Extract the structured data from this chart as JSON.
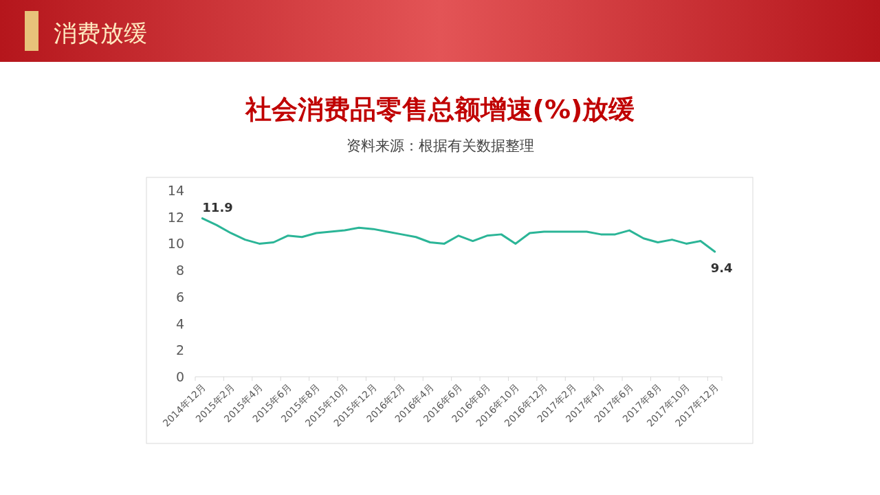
{
  "chart_data": {
    "type": "line",
    "title": "社会消费品零售总额增速(%)放缓",
    "subtitle": "资料来源：根据有关数据整理",
    "annotations": [
      "消费放缓"
    ],
    "categories": [
      "2014年12月",
      null,
      "2015年2月",
      null,
      "2015年4月",
      null,
      "2015年6月",
      null,
      "2015年8月",
      null,
      "2015年10月",
      null,
      "2015年12月",
      null,
      "2016年2月",
      null,
      "2016年4月",
      null,
      "2016年6月",
      null,
      "2016年8月",
      null,
      "2016年10月",
      null,
      "2016年12月",
      null,
      "2017年2月",
      null,
      "2017年4月",
      null,
      "2017年6月",
      null,
      "2017年8月",
      null,
      "2017年10月",
      null,
      "2017年12月"
    ],
    "series": [
      {
        "color": "#2bb597",
        "values": [
          11.9,
          11.4,
          10.8,
          10.3,
          10.0,
          10.1,
          10.6,
          10.5,
          10.8,
          10.9,
          11.0,
          11.2,
          11.1,
          10.9,
          10.7,
          10.5,
          10.1,
          10.0,
          10.6,
          10.2,
          10.6,
          10.7,
          10.0,
          10.8,
          10.9,
          10.9,
          10.9,
          10.9,
          10.7,
          10.7,
          11.0,
          10.4,
          10.1,
          10.3,
          10.0,
          10.2,
          9.4
        ],
        "value_labels": [
          "11.9",
          null,
          null,
          null,
          null,
          null,
          null,
          null,
          null,
          null,
          null,
          null,
          null,
          null,
          null,
          null,
          null,
          null,
          null,
          null,
          null,
          null,
          null,
          null,
          null,
          null,
          null,
          null,
          null,
          null,
          null,
          null,
          null,
          null,
          null,
          null,
          "9.4"
        ]
      }
    ],
    "ylim": [
      0,
      14
    ],
    "yticks": [
      0,
      2,
      4,
      6,
      8,
      10,
      12,
      14
    ]
  }
}
